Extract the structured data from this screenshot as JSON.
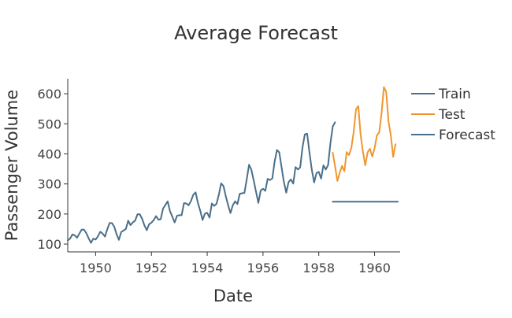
{
  "chart_data": {
    "type": "line",
    "title": "Average Forecast",
    "xlabel": "Date",
    "ylabel": "Passenger Volume",
    "xlim": [
      1949.0,
      1960.9167
    ],
    "ylim": [
      74,
      650
    ],
    "x_ticks": [
      1950,
      1952,
      1954,
      1956,
      1958,
      1960
    ],
    "x_tick_labels": [
      "1950",
      "1952",
      "1954",
      "1956",
      "1958",
      "1960"
    ],
    "y_ticks": [
      100,
      200,
      300,
      400,
      500,
      600
    ],
    "y_tick_labels": [
      "100",
      "200",
      "300",
      "400",
      "500",
      "600"
    ],
    "grid": false,
    "legend_position": "right",
    "series": [
      {
        "name": "Train",
        "color": "#4a6f8a",
        "x_start": 1949.0,
        "x_step": 0.0833333,
        "values": [
          112,
          118,
          132,
          129,
          121,
          135,
          148,
          148,
          136,
          119,
          104,
          118,
          115,
          126,
          141,
          135,
          125,
          149,
          170,
          170,
          158,
          133,
          114,
          140,
          145,
          150,
          178,
          163,
          172,
          178,
          199,
          199,
          184,
          162,
          146,
          166,
          171,
          180,
          193,
          181,
          183,
          218,
          230,
          242,
          209,
          191,
          172,
          194,
          196,
          196,
          236,
          235,
          229,
          243,
          264,
          272,
          237,
          211,
          180,
          201,
          204,
          188,
          235,
          227,
          234,
          264,
          302,
          293,
          259,
          229,
          203,
          229,
          242,
          233,
          267,
          269,
          270,
          315,
          364,
          347,
          312,
          274,
          237,
          278,
          284,
          277,
          317,
          313,
          318,
          374,
          413,
          405,
          355,
          306,
          271,
          306,
          315,
          301,
          356,
          348,
          355,
          422,
          465,
          467,
          404,
          347,
          305,
          336,
          340,
          318,
          362,
          348,
          363,
          435,
          491,
          505
        ]
      },
      {
        "name": "Test",
        "color": "#f0962e",
        "x_start": 1958.5,
        "x_step": 0.0833333,
        "values": [
          404,
          359,
          310,
          337,
          360,
          342,
          406,
          396,
          420,
          472,
          548,
          559,
          463,
          407,
          362,
          405,
          417,
          391,
          419,
          461,
          472,
          535,
          622,
          606,
          508,
          461,
          390,
          432
        ]
      },
      {
        "name": "Forecast",
        "color": "#4a6f8a",
        "x_start": 1958.5,
        "x_step": 0.0833333,
        "values": [
          241,
          241,
          241,
          241,
          241,
          241,
          241,
          241,
          241,
          241,
          241,
          241,
          241,
          241,
          241,
          241,
          241,
          241,
          241,
          241,
          241,
          241,
          241,
          241,
          241,
          241,
          241,
          241,
          241
        ]
      }
    ]
  }
}
